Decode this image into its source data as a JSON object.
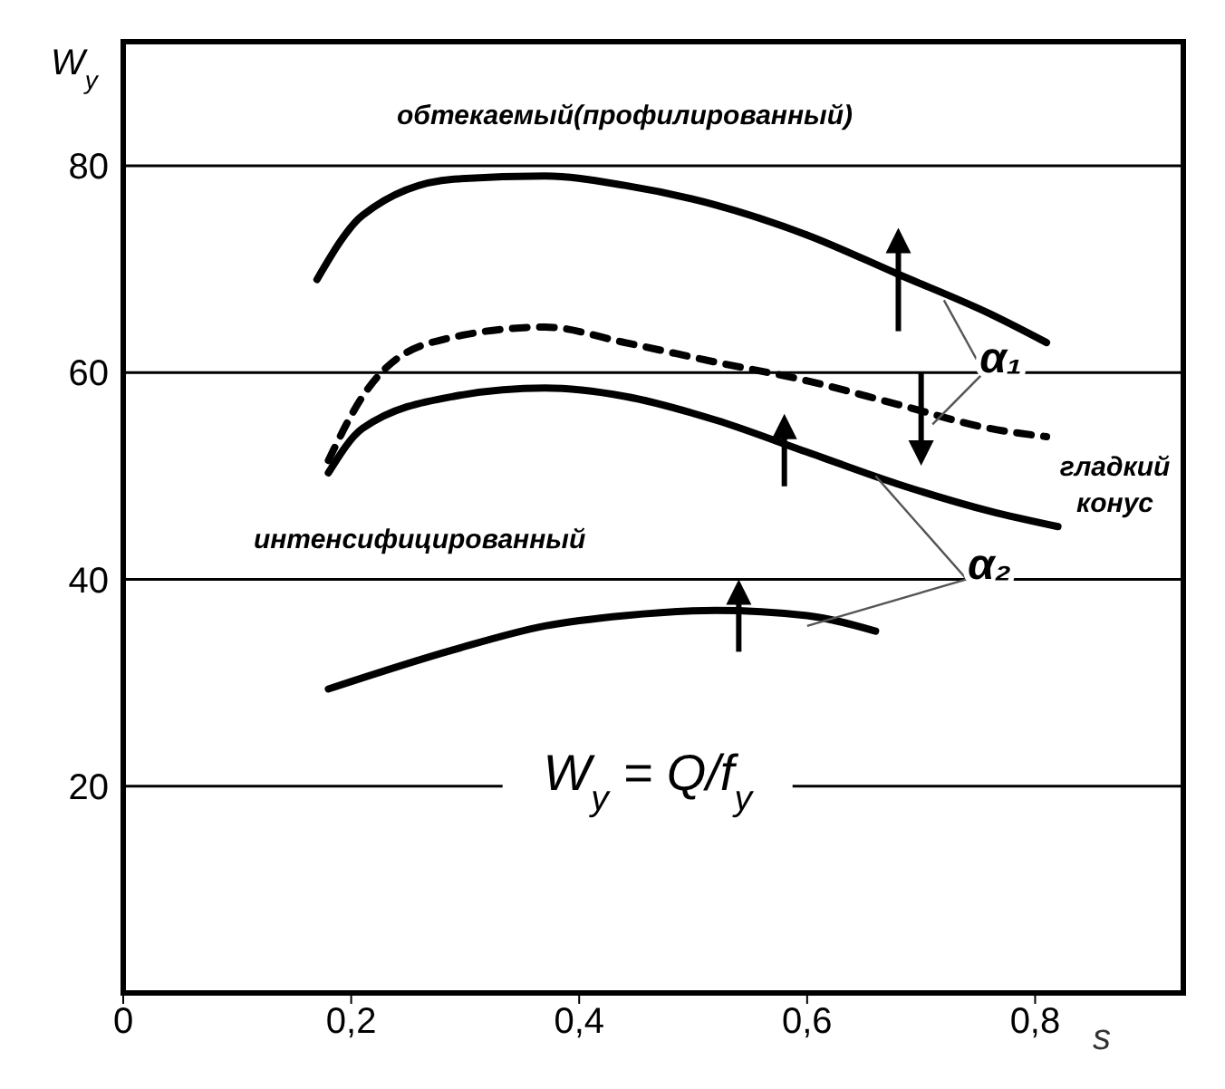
{
  "chart_data": {
    "type": "line",
    "xlabel": "s",
    "ylabel": "W$_{y}$",
    "xlim": [
      0,
      0.93
    ],
    "ylim": [
      0,
      92
    ],
    "xticks": [
      {
        "value": 0,
        "label": "0"
      },
      {
        "value": 0.2,
        "label": "0,2"
      },
      {
        "value": 0.4,
        "label": "0,4"
      },
      {
        "value": 0.6,
        "label": "0,6"
      },
      {
        "value": 0.8,
        "label": "0,8"
      }
    ],
    "yticks": [
      20,
      40,
      60,
      80
    ],
    "grid": "y",
    "marker": "none",
    "series": [
      {
        "color": "#000000",
        "line_style": "solid",
        "x": [
          0.17,
          0.21,
          0.29,
          0.37,
          0.44,
          0.52,
          0.6,
          0.68,
          0.76,
          0.81
        ],
        "values": [
          69,
          75.2,
          78.7,
          79,
          78.1,
          76.2,
          73.3,
          69.5,
          65.7,
          62.9
        ]
      },
      {
        "color": "#000000",
        "line_style": "dashed",
        "x": [
          0.18,
          0.21,
          0.27,
          0.37,
          0.44,
          0.52,
          0.6,
          0.68,
          0.76,
          0.81
        ],
        "values": [
          51.5,
          57.7,
          62.9,
          64.4,
          62.9,
          61,
          59.2,
          56.9,
          54.6,
          53.8
        ]
      },
      {
        "color": "#000000",
        "line_style": "solid",
        "x": [
          0.18,
          0.21,
          0.29,
          0.37,
          0.44,
          0.52,
          0.6,
          0.68,
          0.76,
          0.82
        ],
        "values": [
          50.3,
          54.6,
          57.7,
          58.5,
          57.7,
          55.4,
          52.3,
          49.2,
          46.6,
          45.1
        ]
      },
      {
        "color": "#000000",
        "line_style": "solid",
        "x": [
          0.18,
          0.29,
          0.37,
          0.44,
          0.52,
          0.6,
          0.66
        ],
        "values": [
          29.4,
          33.2,
          35.5,
          36.5,
          37,
          36.5,
          35
        ]
      }
    ],
    "annotations": [
      "обтекаемый(профилированный)",
      "гладкий конус",
      "интенсифицированный",
      "α₁",
      "α₂",
      "W$_{y}$ = Q/f$_{y}$"
    ]
  }
}
